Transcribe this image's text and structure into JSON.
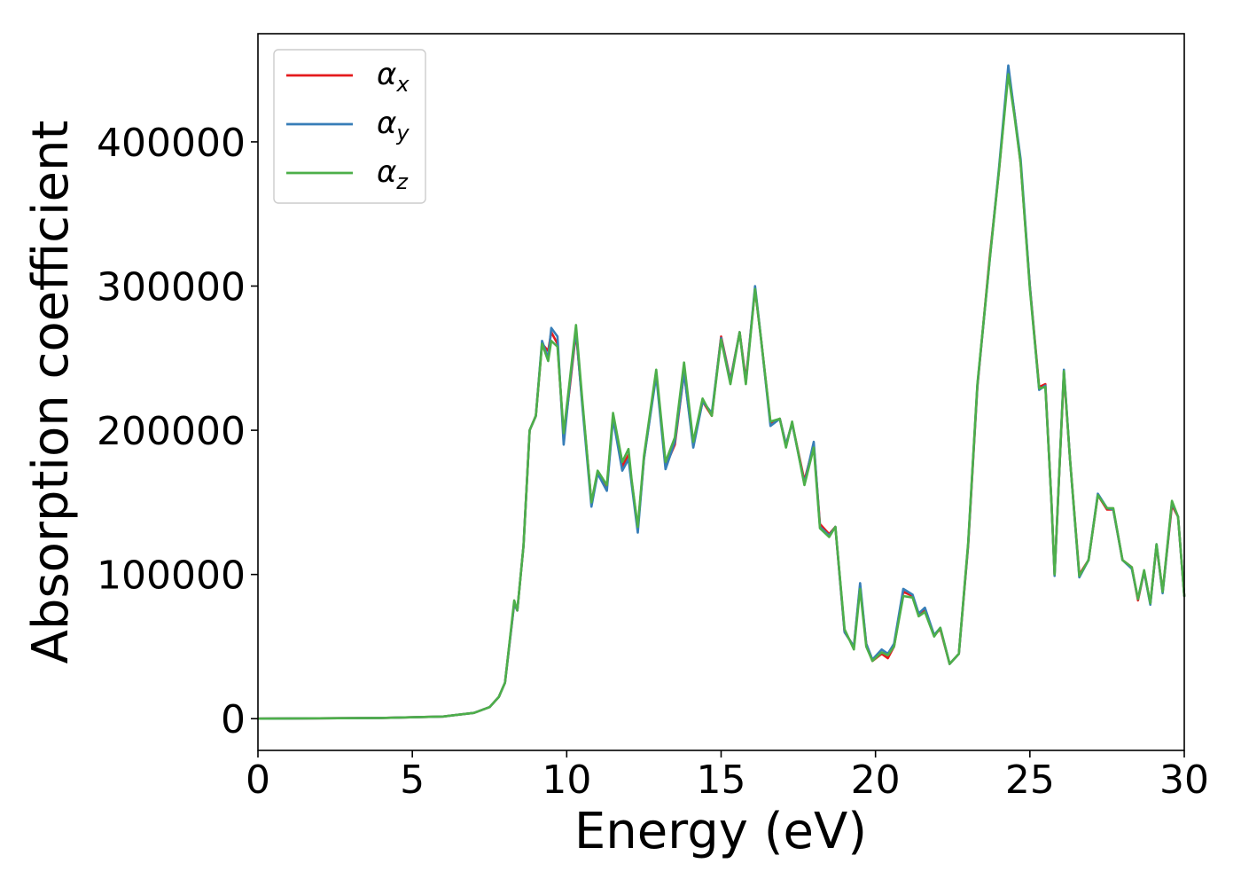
{
  "chart_data": {
    "type": "line",
    "title": "",
    "xlabel": "Energy (eV)",
    "ylabel": "Absorption coefficient",
    "xlim": [
      0,
      30
    ],
    "ylim": [
      -22000,
      475000
    ],
    "x_ticks": [
      0,
      5,
      10,
      15,
      20,
      25,
      30
    ],
    "x_tick_labels": [
      "0",
      "5",
      "10",
      "15",
      "20",
      "25",
      "30"
    ],
    "y_ticks": [
      0,
      100000,
      200000,
      300000,
      400000
    ],
    "y_tick_labels": [
      "0",
      "100000",
      "200000",
      "300000",
      "400000"
    ],
    "grid": false,
    "legend_position": "top-left",
    "x": [
      0,
      4,
      6,
      7,
      7.5,
      7.8,
      8.0,
      8.3,
      8.4,
      8.6,
      8.8,
      9.0,
      9.2,
      9.4,
      9.5,
      9.7,
      9.9,
      10.1,
      10.3,
      10.5,
      10.8,
      11.0,
      11.3,
      11.5,
      11.8,
      12.0,
      12.1,
      12.3,
      12.5,
      12.9,
      13.2,
      13.5,
      13.8,
      14.1,
      14.4,
      14.7,
      15.0,
      15.3,
      15.6,
      15.8,
      16.1,
      16.3,
      16.6,
      16.9,
      17.1,
      17.3,
      17.7,
      18.0,
      18.2,
      18.5,
      18.7,
      19.0,
      19.3,
      19.5,
      19.7,
      19.9,
      20.2,
      20.4,
      20.6,
      20.9,
      21.2,
      21.4,
      21.6,
      21.9,
      22.1,
      22.4,
      22.7,
      23.0,
      23.3,
      23.7,
      24.0,
      24.3,
      24.5,
      24.7,
      25.0,
      25.3,
      25.5,
      25.7,
      25.8,
      26.1,
      26.3,
      26.6,
      26.9,
      27.2,
      27.5,
      27.7,
      28.0,
      28.3,
      28.5,
      28.7,
      28.9,
      29.1,
      29.3,
      29.6,
      29.8,
      30.0
    ],
    "series": [
      {
        "name": "αx",
        "color": "#e41a1c",
        "values": [
          0,
          500,
          1500,
          4000,
          8000,
          15000,
          25000,
          80000,
          75000,
          120000,
          200000,
          210000,
          260000,
          255000,
          268000,
          260000,
          195000,
          230000,
          268000,
          220000,
          150000,
          170000,
          160000,
          210000,
          175000,
          183000,
          165000,
          132000,
          180000,
          240000,
          175000,
          190000,
          240000,
          190000,
          220000,
          210000,
          265000,
          235000,
          268000,
          235000,
          298000,
          262000,
          205000,
          208000,
          190000,
          205000,
          165000,
          190000,
          135000,
          128000,
          133000,
          60000,
          50000,
          92000,
          52000,
          40000,
          45000,
          42000,
          50000,
          88000,
          85000,
          72000,
          75000,
          58000,
          62000,
          38000,
          45000,
          120000,
          230000,
          320000,
          380000,
          450000,
          420000,
          385000,
          300000,
          230000,
          232000,
          150000,
          100000,
          240000,
          180000,
          100000,
          110000,
          155000,
          145000,
          145000,
          110000,
          105000,
          82000,
          102000,
          80000,
          120000,
          88000,
          148000,
          140000,
          85000
        ]
      },
      {
        "name": "αy",
        "color": "#377eb8",
        "values": [
          0,
          500,
          1500,
          4000,
          8000,
          15000,
          25000,
          80000,
          75000,
          120000,
          200000,
          210000,
          262000,
          250000,
          271000,
          265000,
          190000,
          232000,
          270000,
          218000,
          147000,
          170000,
          158000,
          208000,
          172000,
          180000,
          163000,
          129000,
          180000,
          238000,
          173000,
          192000,
          240000,
          188000,
          220000,
          212000,
          264000,
          234000,
          268000,
          233000,
          300000,
          262000,
          203000,
          208000,
          190000,
          205000,
          163000,
          192000,
          133000,
          127000,
          133000,
          60000,
          50000,
          94000,
          52000,
          41000,
          48000,
          45000,
          52000,
          90000,
          86000,
          73000,
          77000,
          58000,
          63000,
          38000,
          45000,
          121000,
          231000,
          318000,
          382000,
          453000,
          420000,
          388000,
          300000,
          228000,
          231000,
          150000,
          99000,
          242000,
          180000,
          98000,
          110000,
          156000,
          146000,
          145000,
          110000,
          104000,
          83000,
          102000,
          79000,
          121000,
          87000,
          150000,
          140000,
          85000
        ]
      },
      {
        "name": "αz",
        "color": "#4daf4a",
        "values": [
          0,
          500,
          1500,
          4000,
          8000,
          15000,
          25000,
          82000,
          75000,
          120000,
          200000,
          210000,
          260000,
          248000,
          262000,
          258000,
          198000,
          235000,
          273000,
          222000,
          150000,
          172000,
          162000,
          212000,
          178000,
          187000,
          166000,
          133000,
          182000,
          242000,
          178000,
          195000,
          247000,
          192000,
          222000,
          210000,
          263000,
          232000,
          268000,
          232000,
          298000,
          262000,
          206000,
          208000,
          188000,
          206000,
          162000,
          188000,
          132000,
          126000,
          133000,
          62000,
          48000,
          90000,
          50000,
          40000,
          46000,
          44000,
          50000,
          85000,
          84000,
          71000,
          74000,
          57000,
          63000,
          38000,
          45000,
          122000,
          232000,
          318000,
          380000,
          447000,
          418000,
          385000,
          298000,
          229000,
          230000,
          150000,
          100000,
          241000,
          180000,
          99000,
          110000,
          155000,
          146000,
          146000,
          110000,
          105000,
          83000,
          103000,
          80000,
          121000,
          88000,
          151000,
          140000,
          85000
        ]
      }
    ]
  }
}
